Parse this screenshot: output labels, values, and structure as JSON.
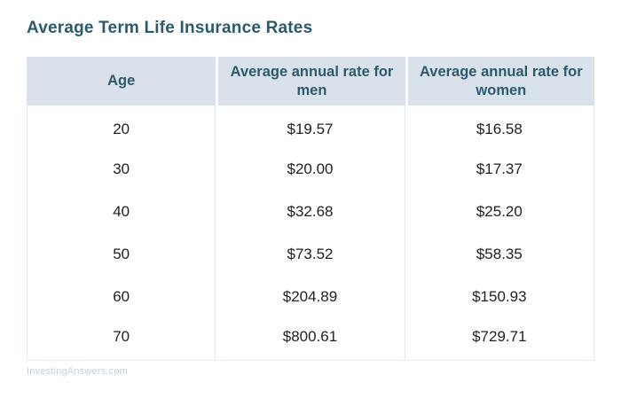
{
  "page": {
    "title": "Average Term Life Insurance Rates",
    "source": "InvestingAnswers.com"
  },
  "table": {
    "headers": [
      "Age",
      "Average annual rate for men",
      "Average annual rate for women"
    ],
    "rows": [
      {
        "age": "20",
        "men": "$19.57",
        "women": "$16.58"
      },
      {
        "age": "30",
        "men": "$20.00",
        "women": "$17.37"
      },
      {
        "age": "40",
        "men": "$32.68",
        "women": "$25.20"
      },
      {
        "age": "50",
        "men": "$73.52",
        "women": "$58.35"
      },
      {
        "age": "60",
        "men": "$204.89",
        "women": "$150.93"
      },
      {
        "age": "70",
        "men": "$800.61",
        "women": "$729.71"
      }
    ]
  },
  "colors": {
    "accent_text": "#2B5A6D",
    "header_background": "#D9E2EB",
    "body_text": "#1F1F21",
    "table_border": "#E3EAF1",
    "source_text": "#C4CFDC",
    "page_background": "#FFFFFF"
  },
  "chart_data": {
    "type": "table",
    "title": "Average Term Life Insurance Rates",
    "columns": [
      "Age",
      "Average annual rate for men",
      "Average annual rate for women"
    ],
    "ages": [
      20,
      30,
      40,
      50,
      60,
      70
    ],
    "series": [
      {
        "name": "Average annual rate for men",
        "values": [
          19.57,
          20.0,
          32.68,
          73.52,
          204.89,
          800.61
        ]
      },
      {
        "name": "Average annual rate for women",
        "values": [
          16.58,
          17.37,
          25.2,
          58.35,
          150.93,
          729.71
        ]
      }
    ],
    "units": "USD per year",
    "source": "InvestingAnswers.com"
  }
}
